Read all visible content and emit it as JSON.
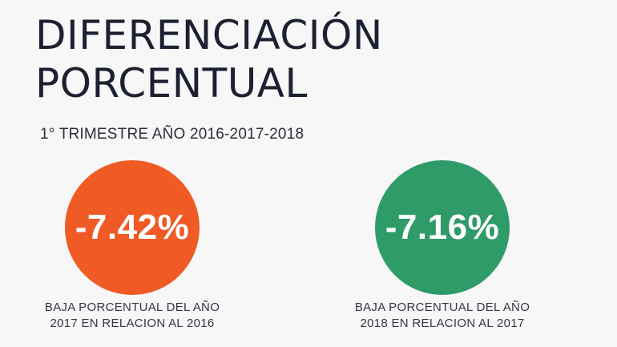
{
  "title_line1": "DIFERENCIACIÓN",
  "title_line2": "PORCENTUAL",
  "subtitle": "1° TRIMESTRE AÑO 2016-2017-2018",
  "stats": [
    {
      "value": "-7.42%",
      "color": "#f05a25",
      "caption_line1": "BAJA PORCENTUAL DEL AÑO",
      "caption_line2": "2017 EN RELACION AL 2016"
    },
    {
      "value": "-7.16%",
      "color": "#2e9b69",
      "caption_line1": "BAJA PORCENTUAL DEL AÑO",
      "caption_line2": "2018 EN RELACION AL 2017"
    }
  ]
}
